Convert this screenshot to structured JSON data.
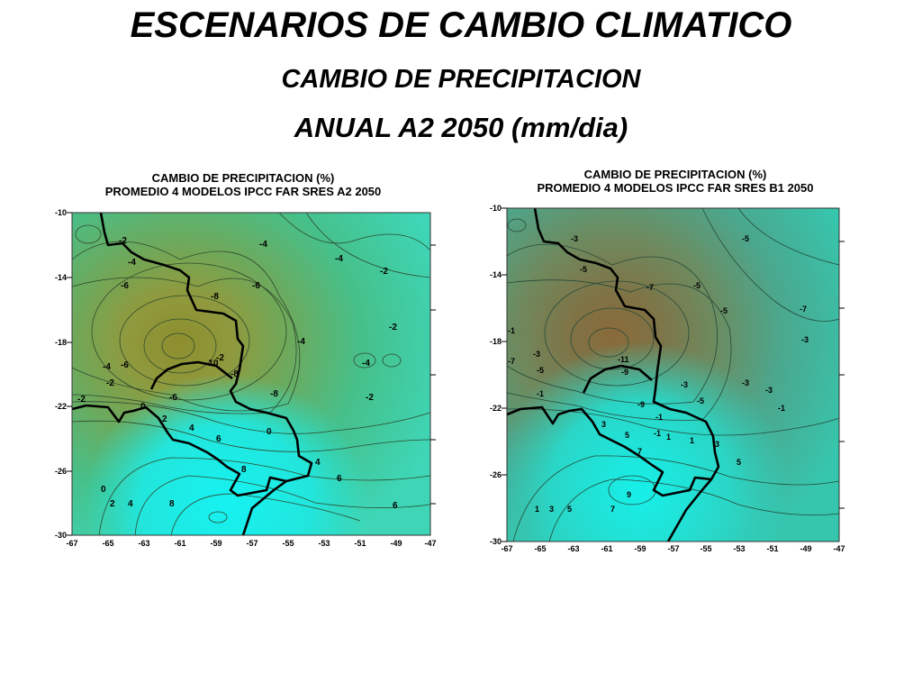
{
  "slide": {
    "title": "ESCENARIOS DE CAMBIO CLIMATICO",
    "subtitle_1": "CAMBIO DE PRECIPITACION",
    "subtitle_2": "ANUAL A2 2050 (mm/dia)"
  },
  "maps": [
    {
      "title_line_1": "CAMBIO DE PRECIPITACION (%)",
      "title_line_2": "PROMEDIO 4 MODELOS IPCC FAR SRES A2 2050",
      "y_ticks": [
        "-10",
        "-14",
        "-18",
        "-22",
        "-26",
        "-30"
      ],
      "x_ticks": [
        "-67",
        "-65",
        "-63",
        "-61",
        "-59",
        "-57",
        "-55",
        "-53",
        "-51",
        "-49",
        "-47"
      ],
      "contour_labels": [
        "-2",
        "-4",
        "-4",
        "-4",
        "-2",
        "-6",
        "-8",
        "-6",
        "-2",
        "-4",
        "-4",
        "-6",
        "-10",
        "-8",
        "-4",
        "-2",
        "-2",
        "-8",
        "-6",
        "-2",
        "0",
        "2",
        "4",
        "6",
        "8",
        "0",
        "4",
        "6",
        "0",
        "2",
        "4",
        "8",
        "6",
        "-2"
      ]
    },
    {
      "title_line_1": "CAMBIO DE PRECIPITACION (%)",
      "title_line_2": "PROMEDIO 4 MODELOS IPCC FAR SRES B1 2050",
      "y_ticks": [
        "-10",
        "-14",
        "-18",
        "-22",
        "-26",
        "-30"
      ],
      "x_ticks": [
        "-67",
        "-65",
        "-63",
        "-61",
        "-59",
        "-57",
        "-55",
        "-53",
        "-51",
        "-49",
        "-47"
      ],
      "contour_labels": [
        "-3",
        "-5",
        "-5",
        "-5",
        "-7",
        "-5",
        "-3",
        "-1",
        "-7",
        "-3",
        "-3",
        "-5",
        "-9",
        "-11",
        "-9",
        "-7",
        "-1",
        "-1",
        "-3",
        "-1",
        "1",
        "3",
        "5",
        "7",
        "-5",
        "-3",
        "3",
        "5",
        "9",
        "1",
        "3",
        "5",
        "7",
        "1",
        "-1"
      ]
    }
  ]
}
